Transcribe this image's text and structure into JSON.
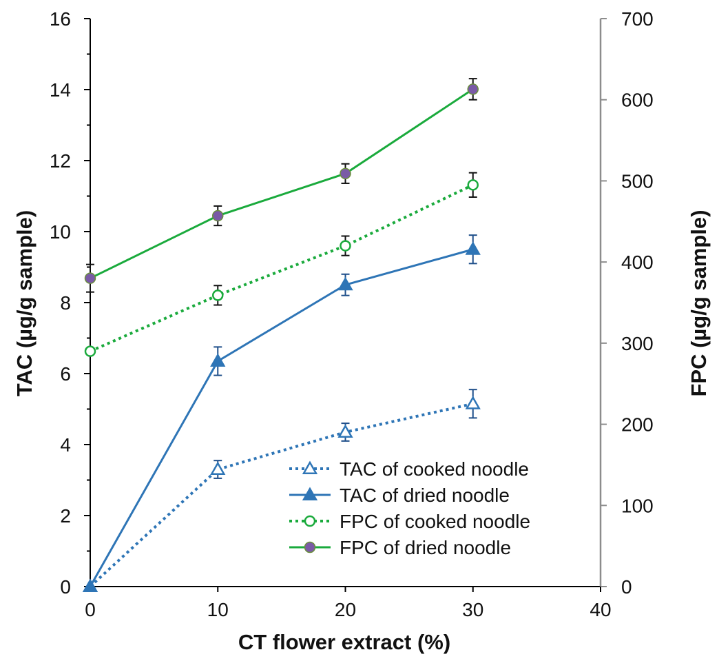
{
  "chart_data": {
    "type": "line",
    "title": "",
    "xlabel": "CT flower extract (%)",
    "ylabel_left": "TAC (µg/g sample)",
    "ylabel_right": "FPC (µg/g sample)",
    "xlim": [
      0,
      40
    ],
    "ylim_left": [
      0,
      16
    ],
    "ylim_right": [
      0,
      700
    ],
    "x_ticks": [
      0,
      10,
      20,
      30,
      40
    ],
    "y_left_ticks": [
      0,
      2,
      4,
      6,
      8,
      10,
      12,
      14,
      16
    ],
    "y_right_ticks": [
      0,
      100,
      200,
      300,
      400,
      500,
      600,
      700
    ],
    "grid": false,
    "legend_position": "bottom-right",
    "x": [
      0,
      10,
      20,
      30
    ],
    "series": [
      {
        "name": "TAC of cooked noodle",
        "axis": "left",
        "values": [
          0,
          3.3,
          4.35,
          5.15
        ],
        "errors": [
          0,
          0.25,
          0.25,
          0.4
        ],
        "color": "#2e75b6",
        "line_style": "dotted",
        "marker": "open-triangle"
      },
      {
        "name": "TAC of dried noodle",
        "axis": "left",
        "values": [
          0,
          6.35,
          8.5,
          9.5
        ],
        "errors": [
          0,
          0.4,
          0.3,
          0.4
        ],
        "color": "#2e75b6",
        "line_style": "solid",
        "marker": "filled-triangle"
      },
      {
        "name": "FPC of cooked noodle",
        "axis": "right",
        "values": [
          290,
          359,
          420,
          495
        ],
        "errors": [
          0,
          12,
          12,
          15
        ],
        "color": "#1aaa3c",
        "line_style": "dotted",
        "marker": "open-circle"
      },
      {
        "name": "FPC of dried noodle",
        "axis": "right",
        "values": [
          380,
          457,
          509,
          613
        ],
        "errors": [
          17,
          12,
          12,
          13
        ],
        "color": "#1aaa3c",
        "line_style": "solid",
        "marker": "filled-circle-purple"
      }
    ]
  }
}
